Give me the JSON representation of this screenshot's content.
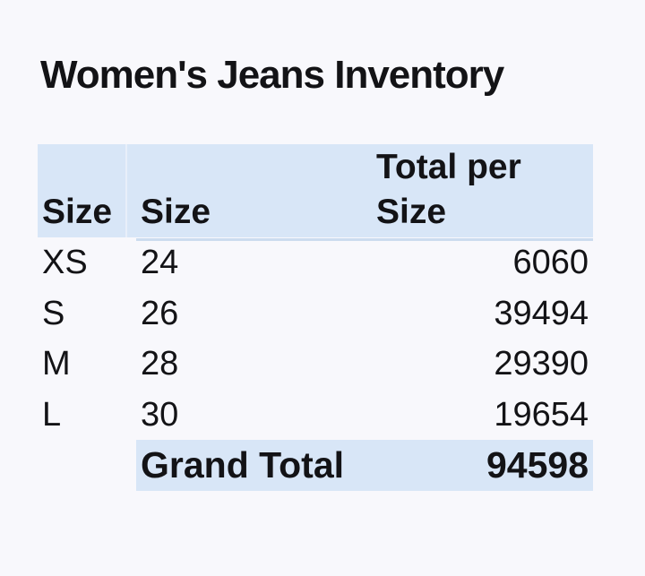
{
  "colors": {
    "background": "#f8f8fc",
    "band_fill": "#d8e6f7",
    "header_underline": "#ccdcef",
    "header_divider": "#e8effa",
    "text": "#131316"
  },
  "chart_data": {
    "type": "table",
    "title": "Women's Jeans Inventory",
    "columns": [
      "Size",
      "Size",
      "Total per Size"
    ],
    "rows": [
      [
        "XS",
        "24",
        "6060"
      ],
      [
        "S",
        "26",
        "39494"
      ],
      [
        "M",
        "28",
        "29390"
      ],
      [
        "L",
        "30",
        "19654"
      ]
    ],
    "grand_total_label": "Grand Total",
    "grand_total_value": "94598",
    "totals_numeric": [
      6060,
      39494,
      29390,
      19654
    ],
    "grand_total_numeric": 94598,
    "layout_hints": {
      "header_fill": "#d8e6f7",
      "value_alignment": "right",
      "header_vertical_align": "bottom",
      "third_header_wraps_as": "Total per | Size",
      "grand_total_fill_starts_at_column": 2,
      "grid": "off",
      "legend": "none"
    }
  }
}
